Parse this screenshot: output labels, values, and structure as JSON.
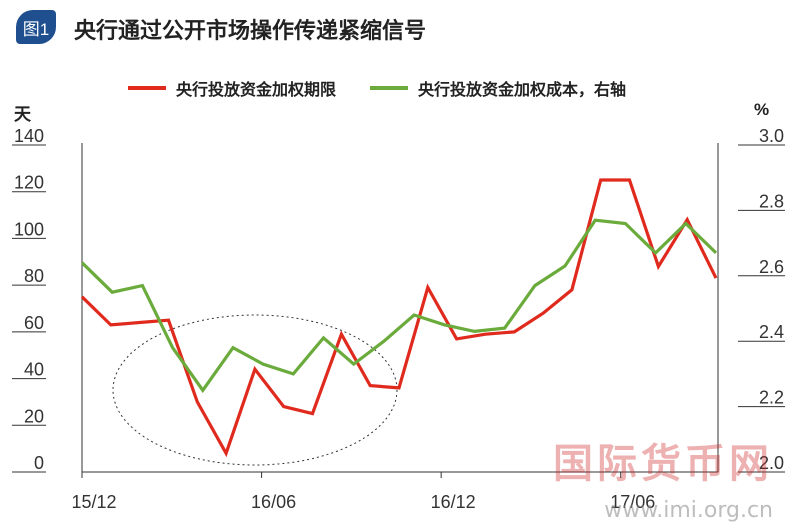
{
  "header": {
    "figure_badge": "图1",
    "title": "央行通过公开市场操作传递紧缩信号"
  },
  "legend": {
    "items": [
      {
        "label": "央行投放资金加权期限",
        "color": "#e02a1e"
      },
      {
        "label": "央行投放资金加权成本，右轴",
        "color": "#6aab3c"
      }
    ]
  },
  "axes": {
    "left_unit": "天",
    "right_unit": "%"
  },
  "watermark": {
    "text": "国际货币网",
    "url": "www.imi.org.cn"
  },
  "chart_data": {
    "type": "line",
    "x_tick_labels": [
      "15/12",
      "16/06",
      "16/12",
      "17/06"
    ],
    "x_tick_index": [
      0,
      6,
      12,
      18
    ],
    "y_left": {
      "lim": [
        0,
        140
      ],
      "ticks": [
        0,
        20,
        40,
        60,
        80,
        100,
        120,
        140
      ]
    },
    "y_right": {
      "lim": [
        2.0,
        3.0
      ],
      "ticks": [
        "2.0",
        "2.2",
        "2.4",
        "2.6",
        "2.8",
        "3.0"
      ]
    },
    "series": [
      {
        "name": "央行投放资金加权期限",
        "axis": "left",
        "color": "#e02a1e",
        "values": [
          75,
          63,
          64,
          65,
          30,
          8,
          44,
          28,
          25,
          59,
          37,
          36,
          79,
          57,
          59,
          60,
          68,
          78,
          125,
          125,
          88,
          108,
          83
        ]
      },
      {
        "name": "央行投放资金加权成本，右轴",
        "axis": "right",
        "color": "#6aab3c",
        "values": [
          2.64,
          2.55,
          2.57,
          2.38,
          2.25,
          2.38,
          2.33,
          2.3,
          2.41,
          2.33,
          2.4,
          2.48,
          2.45,
          2.43,
          2.44,
          2.57,
          2.63,
          2.77,
          2.76,
          2.67,
          2.76,
          2.67
        ]
      }
    ],
    "annotation": {
      "type": "ellipse",
      "description": "dotted ellipse highlighting mid-2016 low period"
    }
  }
}
